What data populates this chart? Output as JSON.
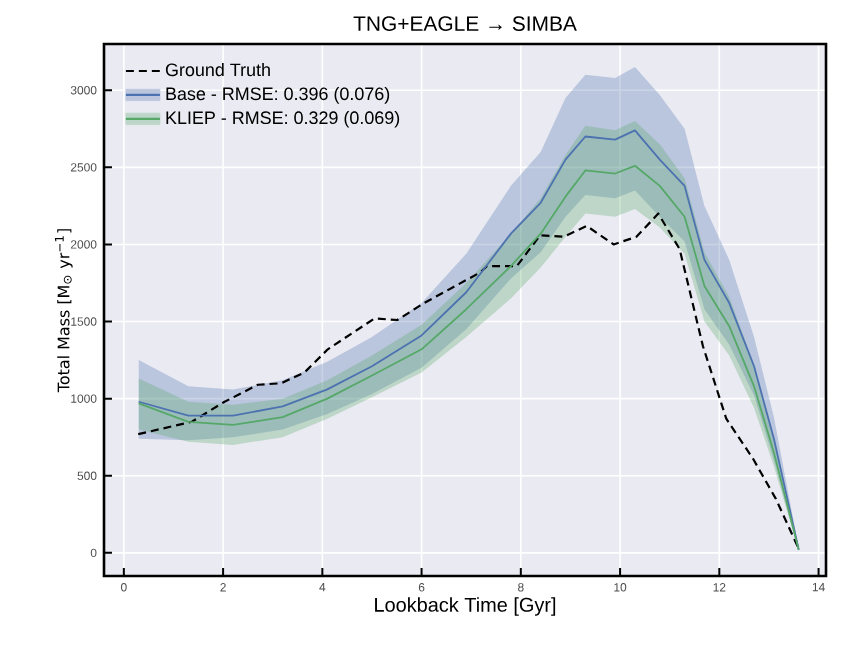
{
  "chart_data": {
    "type": "line",
    "title": "TNG+EAGLE → SIMBA",
    "xlabel": "Lookback Time [Gyr]",
    "ylabel": "Total Mass [M$_{⊙}$ yr$^{−1}$]",
    "xlim": [
      -0.4,
      14.15
    ],
    "ylim": [
      -150,
      3300
    ],
    "xticks": [
      0,
      2,
      4,
      6,
      8,
      10,
      12,
      14
    ],
    "yticks": [
      0,
      500,
      1000,
      1500,
      2000,
      2500,
      3000
    ],
    "grid": true,
    "legend": "top left",
    "series": [
      {
        "name": "Ground Truth",
        "color": "#000000",
        "line_style": "dashed",
        "x": [
          0.29,
          1.37,
          2.03,
          2.7,
          3.17,
          3.64,
          4.11,
          5.05,
          5.51,
          6.05,
          7.19,
          7.32,
          7.92,
          8.39,
          8.86,
          9.33,
          9.87,
          10.33,
          10.77,
          11.2,
          11.67,
          12.14,
          12.68,
          13.14,
          13.61
        ],
        "values": [
          770,
          850,
          980,
          1090,
          1100,
          1170,
          1320,
          1520,
          1510,
          1620,
          1820,
          1860,
          1860,
          2060,
          2050,
          2120,
          2000,
          2050,
          2200,
          1970,
          1340,
          870,
          610,
          350,
          20
        ]
      },
      {
        "name": "Base   - RMSE: 0.396 (0.076)",
        "color": "#4c72b0",
        "x": [
          0.3,
          1.3,
          2.2,
          3.2,
          4.1,
          5.0,
          6.0,
          6.9,
          7.8,
          8.4,
          8.9,
          9.3,
          9.9,
          10.3,
          10.8,
          11.3,
          11.7,
          12.2,
          12.7,
          13.1,
          13.6
        ],
        "values": [
          980,
          890,
          890,
          950,
          1060,
          1210,
          1410,
          1690,
          2070,
          2270,
          2550,
          2700,
          2680,
          2740,
          2550,
          2380,
          1900,
          1620,
          1210,
          740,
          20
        ],
        "upper": [
          1250,
          1080,
          1060,
          1120,
          1240,
          1400,
          1620,
          1940,
          2380,
          2600,
          2950,
          3100,
          3080,
          3150,
          2970,
          2750,
          2250,
          1900,
          1400,
          880,
          30
        ],
        "lower": [
          740,
          730,
          750,
          800,
          900,
          1030,
          1200,
          1450,
          1780,
          1950,
          2180,
          2320,
          2300,
          2350,
          2180,
          2020,
          1580,
          1350,
          1020,
          600,
          10
        ]
      },
      {
        "name": "KLIEP - RMSE: 0.329 (0.069)",
        "color": "#55a868",
        "x": [
          0.3,
          1.3,
          2.2,
          3.2,
          4.1,
          5.0,
          6.0,
          6.9,
          7.8,
          8.4,
          8.9,
          9.3,
          9.9,
          10.3,
          10.8,
          11.3,
          11.7,
          12.2,
          12.7,
          13.1,
          13.6
        ],
        "values": [
          970,
          850,
          830,
          880,
          1000,
          1150,
          1320,
          1580,
          1860,
          2070,
          2310,
          2480,
          2460,
          2510,
          2380,
          2180,
          1730,
          1470,
          1080,
          650,
          20
        ],
        "upper": [
          1130,
          980,
          960,
          1000,
          1120,
          1280,
          1480,
          1750,
          2070,
          2300,
          2580,
          2770,
          2740,
          2800,
          2650,
          2430,
          1950,
          1660,
          1220,
          740,
          25
        ],
        "lower": [
          800,
          720,
          700,
          750,
          870,
          1010,
          1170,
          1400,
          1650,
          1850,
          2050,
          2200,
          2180,
          2230,
          2110,
          1940,
          1500,
          1280,
          940,
          560,
          15
        ]
      }
    ]
  }
}
